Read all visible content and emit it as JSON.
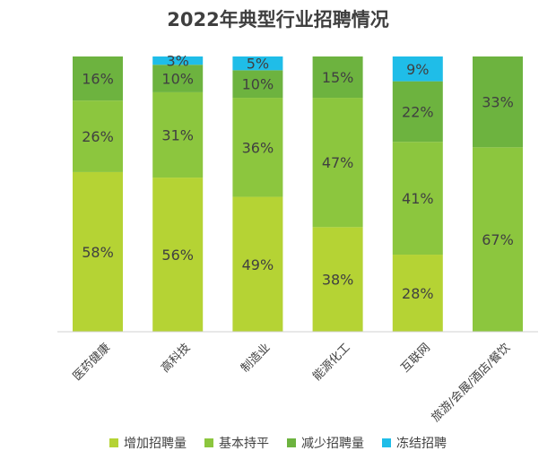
{
  "chart_data": {
    "type": "bar",
    "stacked": true,
    "title": "2022年典型行业招聘情况",
    "categories": [
      "医药健康",
      "高科技",
      "制造业",
      "能源化工",
      "互联网",
      "旅游/会展/酒店/餐饮"
    ],
    "series": [
      {
        "name": "增加招聘量",
        "color": "#b5d334",
        "values": [
          58,
          56,
          49,
          38,
          28,
          0
        ]
      },
      {
        "name": "基本持平",
        "color": "#8cc63e",
        "values": [
          26,
          31,
          36,
          47,
          41,
          67
        ]
      },
      {
        "name": "减少招聘量",
        "color": "#6db33f",
        "values": [
          16,
          10,
          10,
          15,
          22,
          33
        ]
      },
      {
        "name": "冻结招聘",
        "color": "#1fbde8",
        "values": [
          0,
          3,
          5,
          0,
          9,
          0
        ]
      }
    ],
    "ylim": [
      0,
      100
    ],
    "value_suffix": "%",
    "grid": false,
    "legend": "bottom"
  }
}
